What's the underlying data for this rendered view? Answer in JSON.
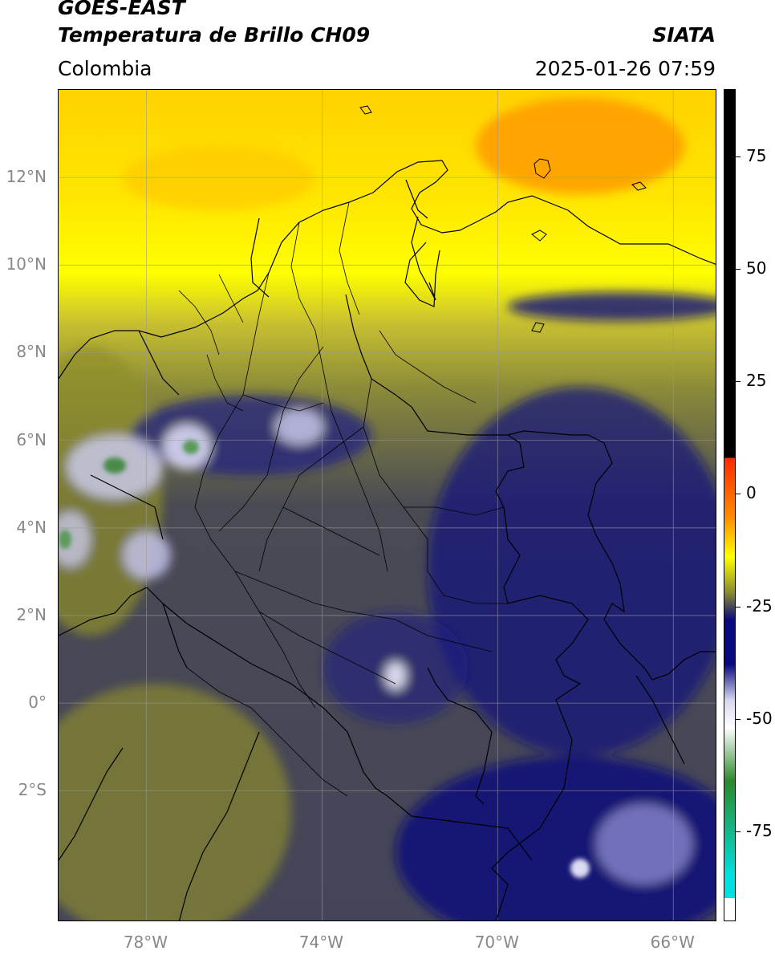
{
  "header": {
    "satellite": "GOES-EAST",
    "product": "Temperatura de Brillo CH09",
    "agency": "SIATA",
    "region": "Colombia",
    "timestamp": "2025-01-26 07:59"
  },
  "map": {
    "lon_range": [
      -80.0,
      -65.0
    ],
    "lat_range": [
      -5.0,
      14.0
    ],
    "lat_ticks": [
      {
        "lat": 12,
        "label": "12°N"
      },
      {
        "lat": 10,
        "label": "10°N"
      },
      {
        "lat": 8,
        "label": "8°N"
      },
      {
        "lat": 6,
        "label": "6°N"
      },
      {
        "lat": 4,
        "label": "4°N"
      },
      {
        "lat": 2,
        "label": "2°N"
      },
      {
        "lat": 0,
        "label": "0°"
      },
      {
        "lat": -2,
        "label": "2°S"
      }
    ],
    "lon_ticks": [
      {
        "lon": -78,
        "label": "78°W"
      },
      {
        "lon": -74,
        "label": "74°W"
      },
      {
        "lon": -70,
        "label": "70°W"
      },
      {
        "lon": -66,
        "label": "66°W"
      }
    ],
    "grid": true
  },
  "colorbar": {
    "range": [
      -95,
      90
    ],
    "ticks": [
      {
        "value": 75,
        "label": "75"
      },
      {
        "value": 50,
        "label": "50"
      },
      {
        "value": 25,
        "label": "25"
      },
      {
        "value": 0,
        "label": "0"
      },
      {
        "value": -25,
        "label": "-25"
      },
      {
        "value": -50,
        "label": "-50"
      },
      {
        "value": -75,
        "label": "-75"
      }
    ],
    "colors": {
      "black": "#000000",
      "red": "#ff2a00",
      "orange": "#ff8a00",
      "yellow": "#ffff00",
      "olive": "#8a8a30",
      "navy": "#0a0a80",
      "light": "#d8d8f0",
      "white": "#ffffff",
      "green": "#2a8a2a",
      "cyan": "#00e0e0"
    }
  }
}
